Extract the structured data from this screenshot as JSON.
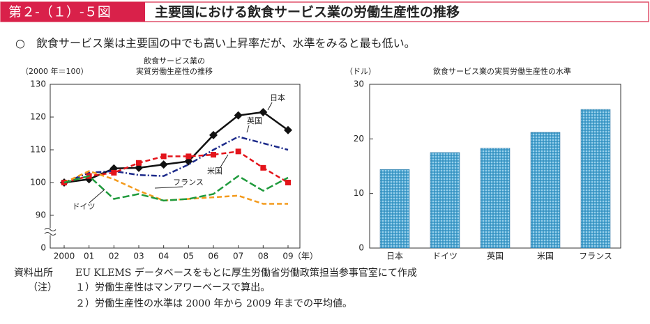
{
  "header": {
    "label": "第２-（１）-５図",
    "title": "主要国における飲食サービス業の労働生産性の推移"
  },
  "summary": "○　飲食サービス業は主要国の中でも高い上昇率だが、水準をみると最も低い。",
  "chart_data": [
    {
      "type": "line",
      "title": [
        "飲食サービス業の",
        "実質労働生産性の推移"
      ],
      "y_label": "（2000 年＝100）",
      "x_label": "（年）",
      "categories": [
        "2000",
        "01",
        "02",
        "03",
        "04",
        "05",
        "06",
        "07",
        "08",
        "09"
      ],
      "ylim": [
        0,
        130
      ],
      "yticks": [
        0,
        90,
        100,
        110,
        120,
        130
      ],
      "axis_break": [
        0,
        90
      ],
      "series": [
        {
          "name": "日本",
          "color": "#111111",
          "dash": "solid",
          "marker": "diamond",
          "values": [
            100,
            101,
            104.3,
            104.5,
            105.5,
            106.5,
            114.5,
            120.5,
            121.5,
            116
          ]
        },
        {
          "name": "英国",
          "color": "#1c2a8a",
          "dash": "dashdot",
          "marker": "none",
          "values": [
            100,
            103,
            103.5,
            102.3,
            102,
            105.5,
            110,
            114,
            112,
            110
          ]
        },
        {
          "name": "米国",
          "color": "#e3141b",
          "dash": "dash",
          "marker": "square",
          "values": [
            100,
            102,
            103,
            106,
            108,
            108,
            108.5,
            109.5,
            104.5,
            100
          ]
        },
        {
          "name": "フランス",
          "color": "#f39a1c",
          "dash": "dash",
          "marker": "none",
          "values": [
            100,
            103.5,
            101,
            97.5,
            94.5,
            95,
            95.5,
            96,
            93.5,
            93.5
          ]
        },
        {
          "name": "ドイツ",
          "color": "#1f9a3c",
          "dash": "longdash",
          "marker": "none",
          "values": [
            100,
            102,
            95,
            96.5,
            94.5,
            95,
            96.5,
            102,
            97.5,
            101.5
          ]
        }
      ]
    },
    {
      "type": "bar",
      "title": "飲食サービス業の実質労働生産性の水準",
      "y_label": "（ドル）",
      "categories": [
        "日本",
        "ドイツ",
        "英国",
        "米国",
        "フランス"
      ],
      "values": [
        14.4,
        17.5,
        18.3,
        21.2,
        25.4
      ],
      "color": "#4ba6d3",
      "ylim": [
        0,
        30
      ],
      "yticks": [
        0,
        10,
        20,
        30
      ]
    }
  ],
  "notes": {
    "source_label": "資料出所",
    "source": "EU KLEMS データベースをもとに厚生労働省労働政策担当参事官室にて作成",
    "note_label": "（注）",
    "items": [
      "１）労働生産性はマンアワーベースで算出。",
      "２）労働生産性の水準は 2000 年から 2009 年までの平均値。"
    ]
  }
}
